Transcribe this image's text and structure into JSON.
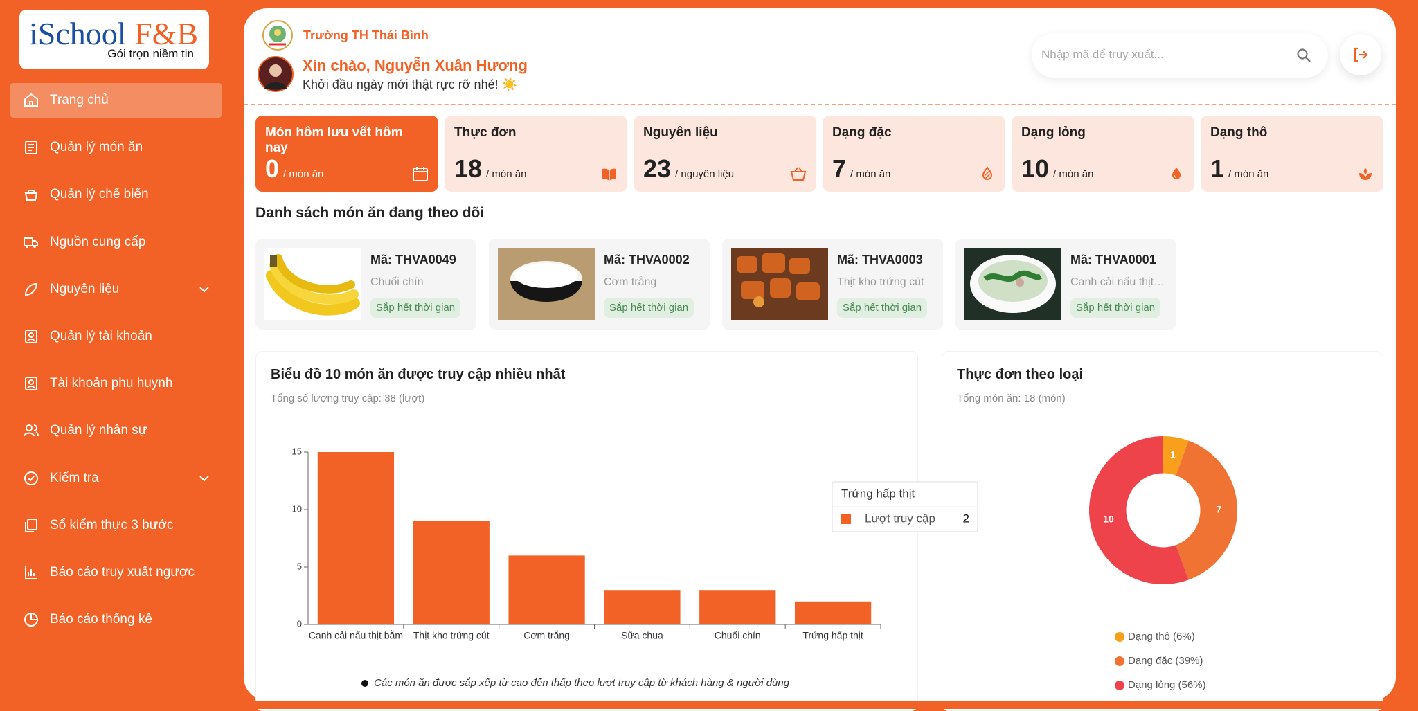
{
  "sidebar": {
    "logo_name": "iSchool",
    "logo_suffix": "F&B",
    "logo_tagline": "Gói trọn niềm tin",
    "nav": [
      {
        "label": "Trang chủ",
        "active": true
      },
      {
        "label": "Quản lý món ăn"
      },
      {
        "label": "Quản lý chế biến"
      },
      {
        "label": "Nguồn cung cấp"
      },
      {
        "label": "Nguyên liệu",
        "expandable": true
      },
      {
        "label": "Quản lý tài khoản"
      },
      {
        "label": "Tài khoản phụ huynh"
      },
      {
        "label": "Quản lý nhân sự"
      },
      {
        "label": "Kiểm tra",
        "expandable": true
      },
      {
        "label": "Sổ kiểm thực 3 bước"
      },
      {
        "label": "Báo cáo truy xuất ngược"
      },
      {
        "label": "Báo cáo thống kê"
      }
    ]
  },
  "header": {
    "school_name": "Trường TH Thái Bình",
    "greeting": "Xin chào, Nguyễn Xuân Hương",
    "subtitle": "Khởi đầu ngày mới thật rực rỡ nhé! ☀️",
    "search_placeholder": "Nhập mã để truy xuất..."
  },
  "stats": [
    {
      "label": "Món hôm lưu vết hôm nay",
      "value": 0,
      "unit": "/ món ăn"
    },
    {
      "label": "Thực đơn",
      "value": 18,
      "unit": "/ món ăn"
    },
    {
      "label": "Nguyên liệu",
      "value": 23,
      "unit": "/ nguyên liệu"
    },
    {
      "label": "Dạng đặc",
      "value": 7,
      "unit": "/ món ăn"
    },
    {
      "label": "Dạng lỏng",
      "value": 10,
      "unit": "/ món ăn"
    },
    {
      "label": "Dạng thô",
      "value": 1,
      "unit": "/ món ăn"
    }
  ],
  "tracked": {
    "title": "Danh sách món ăn đang theo dõi",
    "items": [
      {
        "code": "Mã: THVA0049",
        "name": "Chuối chín",
        "status": "Sắp hết thời gian"
      },
      {
        "code": "Mã: THVA0002",
        "name": "Cơm trắng",
        "status": "Sắp hết thời gian"
      },
      {
        "code": "Mã: THVA0003",
        "name": "Thịt kho trứng cút",
        "status": "Sắp hết thời gian"
      },
      {
        "code": "Mã: THVA0001",
        "name": "Canh cải nấu thịt bằm",
        "status": "Sắp hết thời gian"
      }
    ]
  },
  "chart_data": [
    {
      "type": "bar",
      "title": "Biểu đồ 10 món ăn được truy cập nhiều nhất",
      "subtitle": "Tổng số lượng truy cập: 38 (lượt)",
      "categories": [
        "Canh cải nấu thịt bằm",
        "Thịt kho trứng cút",
        "Cơm trắng",
        "Sữa chua",
        "Chuối chín",
        "Trứng hấp thịt"
      ],
      "series": [
        {
          "name": "Lượt truy cập",
          "color": "#f26125",
          "values": [
            15,
            9,
            6,
            3,
            3,
            2
          ]
        }
      ],
      "ylim": [
        0,
        15
      ],
      "yticks": [
        0,
        5,
        10,
        15
      ],
      "tooltip_index": 5,
      "footnote": "Các món ăn được sắp xếp từ cao đến thấp theo lượt truy cập từ khách hàng & người dùng"
    },
    {
      "type": "pie",
      "title": "Thực đơn theo loại",
      "subtitle": "Tổng món ăn: 18 (món)",
      "hole": 0.5,
      "categories": [
        "Dạng thô (6%)",
        "Dạng đặc (39%)",
        "Dạng lỏng (56%)"
      ],
      "values": [
        1,
        7,
        10
      ],
      "colors": [
        "#f8a01c",
        "#f07333",
        "#ef434b"
      ]
    }
  ]
}
